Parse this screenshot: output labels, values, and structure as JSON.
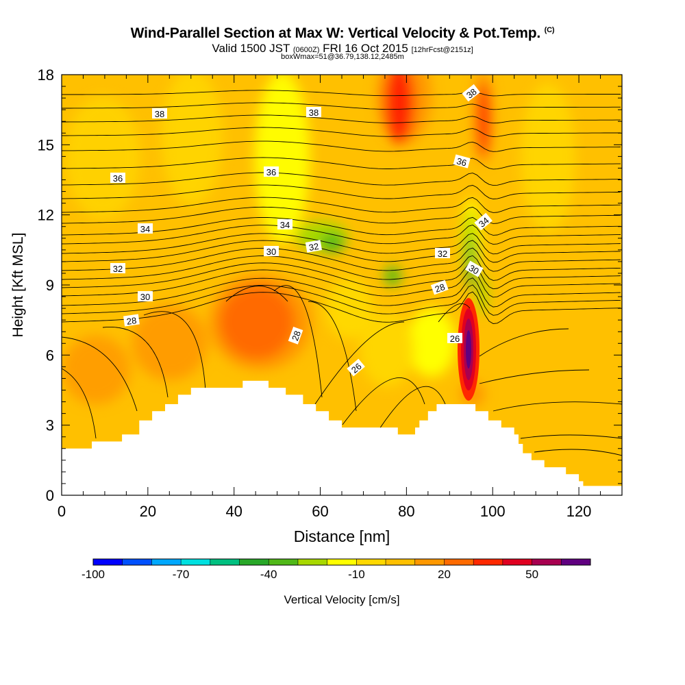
{
  "header": {
    "title": "Wind-Parallel Section at Max W: Vertical Velocity & Pot.Temp.",
    "title_mark": "(C)",
    "subtitle_prefix": "Valid 1500 JST",
    "subtitle_zulu": "(0600Z)",
    "subtitle_date": "FRI 16 Oct 2015",
    "subtitle_fcst": "[12hrFcst@2151z]",
    "subtitle2": "boxWmax=51@36.79,138.12,2485m"
  },
  "chart_data": {
    "type": "heatmap",
    "xlabel": "Distance [nm]",
    "ylabel": "Height [Kft MSL]",
    "xlim": [
      0,
      130
    ],
    "ylim": [
      0,
      18
    ],
    "x_ticks": [
      "0",
      "20",
      "40",
      "60",
      "80",
      "100",
      "120"
    ],
    "y_ticks": [
      "0",
      "3",
      "6",
      "9",
      "12",
      "15",
      "18"
    ],
    "colorbar": {
      "label": "Vertical Velocity [cm/s]",
      "tick_labels": [
        "-100",
        "-70",
        "-40",
        "-10",
        "20",
        "50"
      ],
      "colors": [
        "#0000ff",
        "#0050ff",
        "#00a8ff",
        "#00e0e0",
        "#00c080",
        "#28a828",
        "#50b818",
        "#a8d800",
        "#ffff00",
        "#ffd800",
        "#ffc000",
        "#ff9800",
        "#ff6a00",
        "#ff2800",
        "#e00020",
        "#a80050",
        "#600080"
      ]
    },
    "contour_labels": [
      "38",
      "38",
      "38",
      "36",
      "36",
      "36",
      "34",
      "34",
      "34",
      "32",
      "32",
      "32",
      "30",
      "30",
      "30",
      "28",
      "28",
      "28",
      "26",
      "26"
    ],
    "terrain": [
      [
        0,
        2.0
      ],
      [
        7,
        2.0
      ],
      [
        7,
        2.3
      ],
      [
        14,
        2.3
      ],
      [
        14,
        2.6
      ],
      [
        18,
        2.6
      ],
      [
        18,
        3.2
      ],
      [
        21,
        3.2
      ],
      [
        21,
        3.6
      ],
      [
        24,
        3.6
      ],
      [
        24,
        3.9
      ],
      [
        27,
        3.9
      ],
      [
        27,
        4.3
      ],
      [
        30,
        4.3
      ],
      [
        30,
        4.6
      ],
      [
        42,
        4.6
      ],
      [
        42,
        4.9
      ],
      [
        48,
        4.9
      ],
      [
        48,
        4.6
      ],
      [
        52,
        4.6
      ],
      [
        52,
        4.3
      ],
      [
        56,
        4.3
      ],
      [
        56,
        3.9
      ],
      [
        59,
        3.9
      ],
      [
        59,
        3.6
      ],
      [
        62,
        3.6
      ],
      [
        62,
        3.2
      ],
      [
        65,
        3.2
      ],
      [
        65,
        2.9
      ],
      [
        78,
        2.9
      ],
      [
        78,
        2.6
      ],
      [
        82,
        2.6
      ],
      [
        82,
        2.9
      ],
      [
        83,
        2.9
      ],
      [
        83,
        3.2
      ],
      [
        85,
        3.2
      ],
      [
        85,
        3.6
      ],
      [
        87,
        3.6
      ],
      [
        87,
        3.9
      ],
      [
        96,
        3.9
      ],
      [
        96,
        3.6
      ],
      [
        99,
        3.6
      ],
      [
        99,
        3.2
      ],
      [
        102,
        3.2
      ],
      [
        102,
        2.9
      ],
      [
        105,
        2.9
      ],
      [
        105,
        2.6
      ],
      [
        106,
        2.6
      ],
      [
        106,
        2.2
      ],
      [
        107,
        2.2
      ],
      [
        107,
        1.8
      ],
      [
        109,
        1.8
      ],
      [
        109,
        1.5
      ],
      [
        112,
        1.5
      ],
      [
        112,
        1.2
      ],
      [
        117,
        1.2
      ],
      [
        117,
        0.9
      ],
      [
        120,
        0.9
      ],
      [
        120,
        0.6
      ],
      [
        121,
        0.6
      ],
      [
        121,
        0.4
      ],
      [
        130,
        0.4
      ]
    ]
  }
}
